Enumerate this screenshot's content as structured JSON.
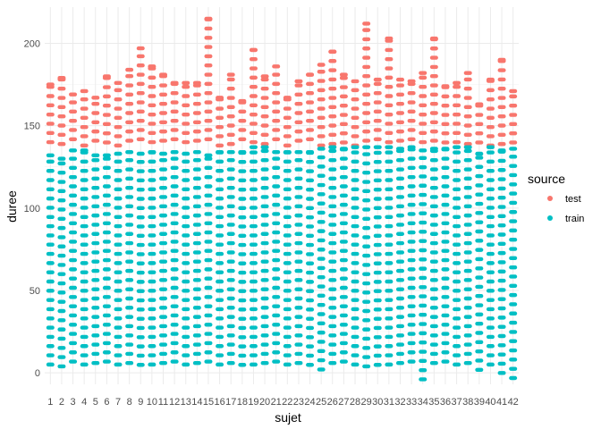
{
  "chart_data": {
    "type": "scatter",
    "title": "",
    "xlabel": "sujet",
    "ylabel": "duree",
    "x_categories": [
      "1",
      "2",
      "3",
      "4",
      "5",
      "6",
      "7",
      "8",
      "9",
      "10",
      "11",
      "12",
      "13",
      "14",
      "15",
      "16",
      "17",
      "18",
      "19",
      "20",
      "21",
      "22",
      "23",
      "24",
      "25",
      "26",
      "27",
      "28",
      "29",
      "30",
      "31",
      "32",
      "33",
      "34",
      "35",
      "36",
      "37",
      "38",
      "39",
      "40",
      "41",
      "42"
    ],
    "ylim": [
      -7,
      222
    ],
    "y_ticks": [
      0,
      50,
      100,
      150,
      200
    ],
    "grid": true,
    "legend": {
      "title": "source",
      "position": "right"
    },
    "series": [
      {
        "name": "test",
        "color": "#F8766D",
        "ranges": [
          [
            1,
            140,
            175
          ],
          [
            2,
            138,
            179
          ],
          [
            3,
            140,
            169
          ],
          [
            4,
            138,
            171
          ],
          [
            5,
            140,
            167
          ],
          [
            6,
            138,
            180
          ],
          [
            7,
            138,
            176
          ],
          [
            8,
            140,
            184
          ],
          [
            9,
            140,
            197
          ],
          [
            10,
            140,
            186
          ],
          [
            11,
            140,
            181
          ],
          [
            12,
            140,
            176
          ],
          [
            13,
            140,
            176
          ],
          [
            14,
            140,
            176
          ],
          [
            15,
            140,
            215
          ],
          [
            16,
            138,
            167
          ],
          [
            17,
            138,
            181
          ],
          [
            18,
            140,
            165
          ],
          [
            19,
            140,
            196
          ],
          [
            20,
            138,
            180
          ],
          [
            21,
            140,
            186
          ],
          [
            22,
            138,
            167
          ],
          [
            23,
            140,
            177
          ],
          [
            24,
            140,
            181
          ],
          [
            25,
            138,
            187
          ],
          [
            26,
            138,
            195
          ],
          [
            27,
            138,
            181
          ],
          [
            28,
            138,
            177
          ],
          [
            29,
            140,
            212
          ],
          [
            30,
            140,
            178
          ],
          [
            31,
            140,
            203
          ],
          [
            32,
            140,
            178
          ],
          [
            33,
            140,
            177
          ],
          [
            34,
            140,
            182
          ],
          [
            35,
            140,
            203
          ],
          [
            36,
            138,
            174
          ],
          [
            37,
            140,
            176
          ],
          [
            38,
            138,
            182
          ],
          [
            39,
            138,
            163
          ],
          [
            40,
            138,
            178
          ],
          [
            41,
            138,
            190
          ],
          [
            42,
            138,
            171
          ]
        ]
      },
      {
        "name": "train",
        "color": "#00BFC4",
        "ranges": [
          [
            1,
            5,
            132
          ],
          [
            2,
            3,
            130
          ],
          [
            3,
            5,
            135
          ],
          [
            4,
            5,
            135
          ],
          [
            5,
            5,
            132
          ],
          [
            6,
            5,
            132
          ],
          [
            7,
            5,
            133
          ],
          [
            8,
            5,
            134
          ],
          [
            9,
            3,
            133
          ],
          [
            10,
            5,
            134
          ],
          [
            11,
            5,
            133
          ],
          [
            12,
            5,
            134
          ],
          [
            13,
            5,
            133
          ],
          [
            14,
            5,
            134
          ],
          [
            15,
            5,
            132
          ],
          [
            16,
            5,
            134
          ],
          [
            17,
            5,
            134
          ],
          [
            18,
            3,
            134
          ],
          [
            19,
            5,
            137
          ],
          [
            20,
            5,
            137
          ],
          [
            21,
            5,
            134
          ],
          [
            22,
            5,
            134
          ],
          [
            23,
            5,
            134
          ],
          [
            24,
            3,
            134
          ],
          [
            25,
            2,
            136
          ],
          [
            26,
            5,
            137
          ],
          [
            27,
            5,
            136
          ],
          [
            28,
            5,
            137
          ],
          [
            29,
            3,
            137
          ],
          [
            30,
            3,
            137
          ],
          [
            31,
            5,
            137
          ],
          [
            32,
            5,
            136
          ],
          [
            33,
            5,
            137
          ],
          [
            34,
            -4,
            135
          ],
          [
            35,
            5,
            136
          ],
          [
            36,
            5,
            136
          ],
          [
            37,
            5,
            137
          ],
          [
            38,
            5,
            137
          ],
          [
            39,
            0,
            133
          ],
          [
            40,
            5,
            137
          ],
          [
            41,
            -1,
            135
          ],
          [
            42,
            -5,
            136
          ]
        ]
      }
    ]
  }
}
